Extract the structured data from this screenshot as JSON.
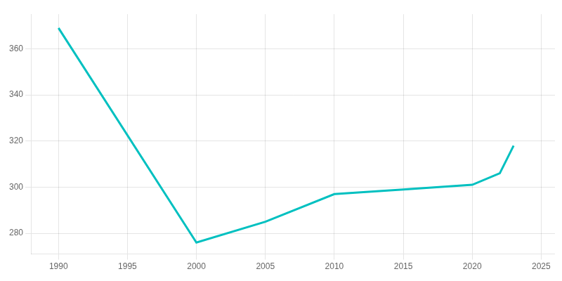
{
  "chart_data": {
    "type": "line",
    "x": [
      1990,
      2000,
      2005,
      2010,
      2015,
      2020,
      2022,
      2023
    ],
    "values": [
      369,
      276,
      285,
      297,
      299,
      301,
      306,
      318
    ],
    "color": "#00c0c0",
    "xlim": [
      1988,
      2026
    ],
    "ylim": [
      271,
      375
    ],
    "xticks": [
      1990,
      1995,
      2000,
      2005,
      2010,
      2015,
      2020,
      2025
    ],
    "yticks": [
      280,
      300,
      320,
      340,
      360
    ],
    "grid": true
  }
}
